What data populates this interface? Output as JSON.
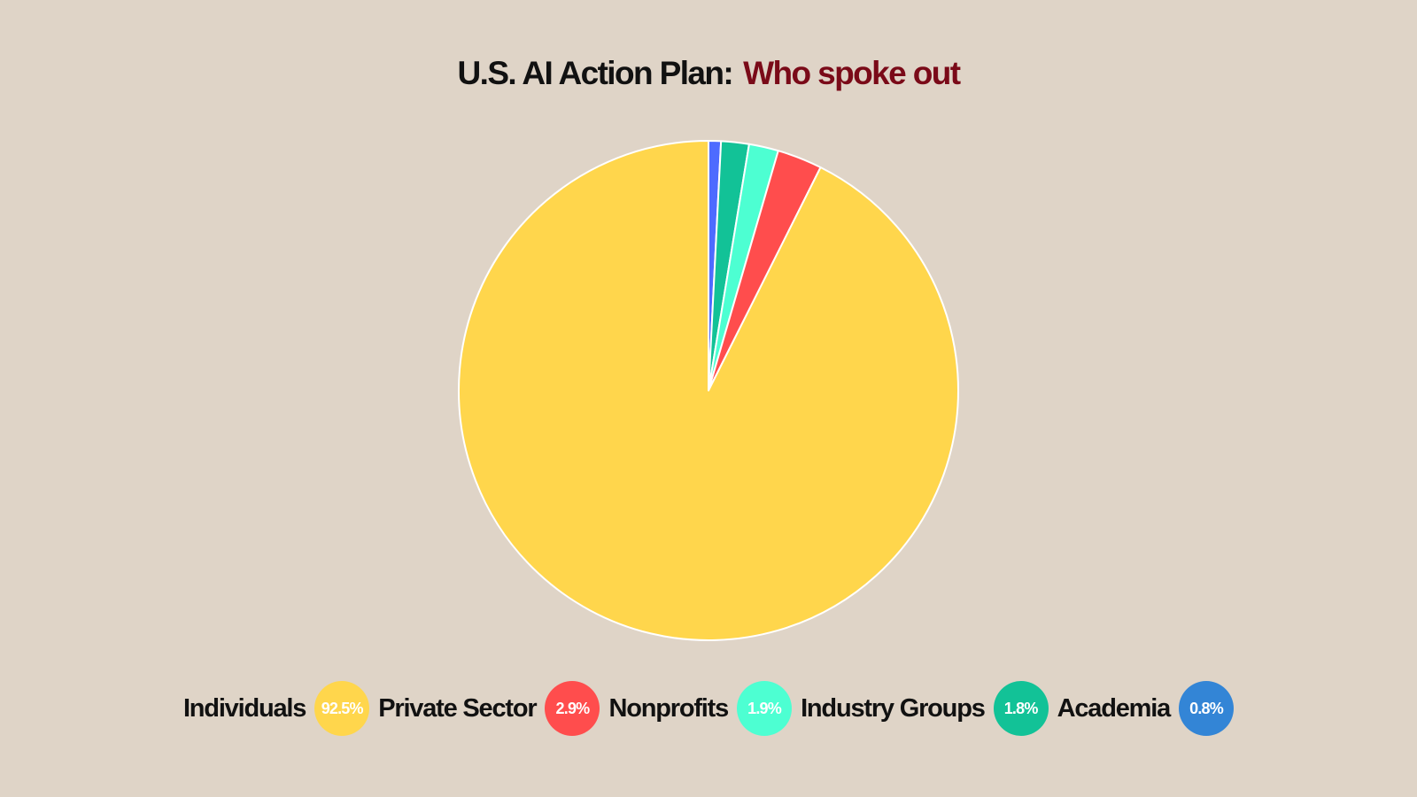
{
  "chart_data": {
    "type": "pie",
    "title": "U.S. AI Action Plan:",
    "subtitle": "Who spoke out",
    "title_color": "#111111",
    "subtitle_color": "#7a0a18",
    "slices": [
      {
        "label": "Individuals",
        "value": 92.5,
        "value_label": "92.5%",
        "color": "#ffd64c"
      },
      {
        "label": "Private Sector",
        "value": 2.9,
        "value_label": "2.9%",
        "color": "#ff4d4d"
      },
      {
        "label": "Nonprofits",
        "value": 1.9,
        "value_label": "1.9%",
        "color": "#4dffd2"
      },
      {
        "label": "Industry Groups",
        "value": 1.8,
        "value_label": "1.8%",
        "color": "#12c297"
      },
      {
        "label": "Academia",
        "value": 0.8,
        "value_label": "0.8%",
        "color": "#4d6bff",
        "badge_color": "#3385d6"
      }
    ],
    "legend_position": "bottom",
    "start_angle": "top",
    "direction": "counterclockwise"
  }
}
